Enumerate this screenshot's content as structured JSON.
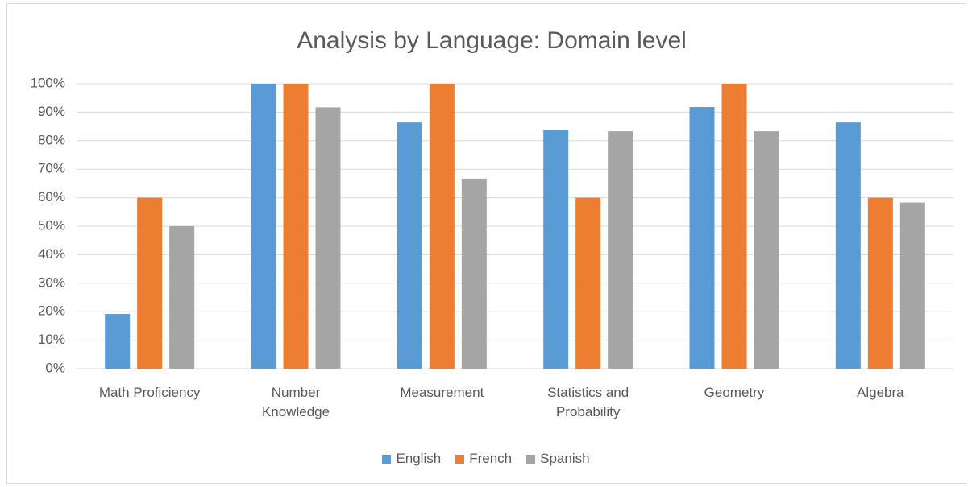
{
  "chart_data": {
    "type": "bar",
    "title": "Analysis by Language: Domain level",
    "categories": [
      "Math Proficiency",
      "Number Knowledge",
      "Measurement",
      "Statistics and Probability",
      "Geometry",
      "Algebra"
    ],
    "series": [
      {
        "name": "English",
        "color": "#5b9bd5",
        "values": [
          19.2,
          100,
          86.4,
          83.7,
          91.8,
          86.4
        ]
      },
      {
        "name": "French",
        "color": "#ed7d31",
        "values": [
          60,
          100,
          100,
          60,
          100,
          60
        ]
      },
      {
        "name": "Spanish",
        "color": "#a5a5a5",
        "values": [
          50,
          91.7,
          66.7,
          83.3,
          83.3,
          58.3
        ]
      }
    ],
    "ylim": [
      0,
      100
    ],
    "yticks": [
      {
        "value": 0,
        "label": "0%"
      },
      {
        "value": 10,
        "label": "10%"
      },
      {
        "value": 20,
        "label": "20%"
      },
      {
        "value": 30,
        "label": "30%"
      },
      {
        "value": 40,
        "label": "40%"
      },
      {
        "value": 50,
        "label": "50%"
      },
      {
        "value": 60,
        "label": "60%"
      },
      {
        "value": 70,
        "label": "70%"
      },
      {
        "value": 80,
        "label": "80%"
      },
      {
        "value": 90,
        "label": "90%"
      },
      {
        "value": 100,
        "label": "100%"
      }
    ],
    "grid": true,
    "legend": "bottom"
  }
}
